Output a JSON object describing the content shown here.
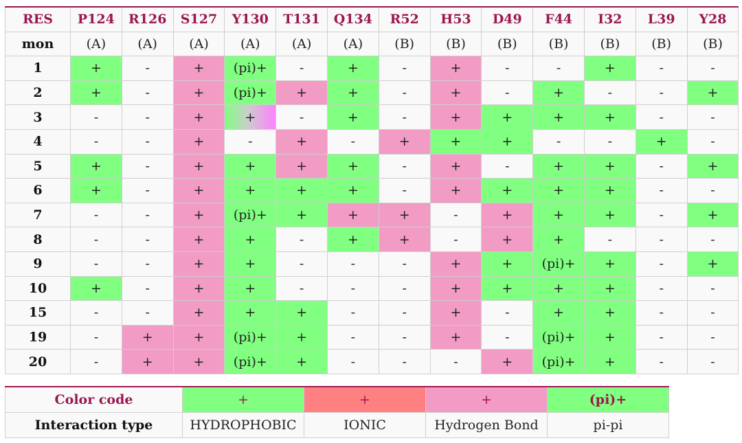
{
  "header": {
    "res_label": "RES",
    "residues": [
      "P124",
      "R126",
      "S127",
      "Y130",
      "T131",
      "Q134",
      "R52",
      "H53",
      "D49",
      "F44",
      "I32",
      "L39",
      "Y28"
    ]
  },
  "mon_row": {
    "label": "mon",
    "values": [
      "(A)",
      "(A)",
      "(A)",
      "(A)",
      "(A)",
      "(A)",
      "(B)",
      "(B)",
      "(B)",
      "(B)",
      "(B)",
      "(B)",
      "(B)"
    ]
  },
  "rows": [
    {
      "label": "1",
      "values": [
        "+",
        "-",
        "+",
        "(pi)+",
        "-",
        "+",
        "-",
        "+",
        "-",
        "-",
        "+",
        "-",
        "-"
      ]
    },
    {
      "label": "2",
      "values": [
        "+",
        "-",
        "+",
        "(pi)+",
        "+",
        "+",
        "-",
        "+",
        "-",
        "+",
        "-",
        "-",
        "+"
      ]
    },
    {
      "label": "3",
      "values": [
        "-",
        "-",
        "+",
        "+",
        "-",
        "+",
        "-",
        "+",
        "+",
        "+",
        "+",
        "-",
        "-"
      ]
    },
    {
      "label": "4",
      "values": [
        "-",
        "-",
        "+",
        "-",
        "+",
        "-",
        "+",
        "+",
        "+",
        "-",
        "-",
        "+",
        "-"
      ]
    },
    {
      "label": "5",
      "values": [
        "+",
        "-",
        "+",
        "+",
        "+",
        "+",
        "-",
        "+",
        "-",
        "+",
        "+",
        "-",
        "+"
      ]
    },
    {
      "label": "6",
      "values": [
        "+",
        "-",
        "+",
        "+",
        "+",
        "+",
        "-",
        "+",
        "+",
        "+",
        "+",
        "-",
        "-"
      ]
    },
    {
      "label": "7",
      "values": [
        "-",
        "-",
        "+",
        "(pi)+",
        "+",
        "+",
        "+",
        "-",
        "+",
        "+",
        "+",
        "-",
        "+"
      ]
    },
    {
      "label": "8",
      "values": [
        "-",
        "-",
        "+",
        "+",
        "-",
        "+",
        "+",
        "-",
        "+",
        "+",
        "-",
        "-",
        "-"
      ]
    },
    {
      "label": "9",
      "values": [
        "-",
        "-",
        "+",
        "+",
        "-",
        "-",
        "-",
        "+",
        "+",
        "(pi)+",
        "+",
        "-",
        "+"
      ]
    },
    {
      "label": "10",
      "values": [
        "+",
        "-",
        "+",
        "+",
        "-",
        "-",
        "-",
        "+",
        "+",
        "+",
        "+",
        "-",
        "-"
      ]
    },
    {
      "label": "15",
      "values": [
        "-",
        "-",
        "+",
        "+",
        "+",
        "-",
        "-",
        "+",
        "-",
        "+",
        "+",
        "-",
        "-"
      ]
    },
    {
      "label": "19",
      "values": [
        "-",
        "+",
        "+",
        "(pi)+",
        "+",
        "-",
        "-",
        "+",
        "-",
        "(pi)+",
        "+",
        "-",
        "-"
      ]
    },
    {
      "label": "20",
      "values": [
        "-",
        "+",
        "+",
        "(pi)+",
        "+",
        "-",
        "-",
        "-",
        "+",
        "(pi)+",
        "+",
        "-",
        "-"
      ]
    }
  ],
  "cell_colors": [
    [
      "g",
      "w",
      "p",
      "g",
      "w",
      "g",
      "w",
      "p",
      "w",
      "w",
      "g",
      "w",
      "w"
    ],
    [
      "g",
      "w",
      "p",
      "g",
      "p",
      "g",
      "w",
      "p",
      "w",
      "g",
      "w",
      "w",
      "g"
    ],
    [
      "w",
      "w",
      "p",
      "grad",
      "w",
      "g",
      "w",
      "p",
      "g",
      "g",
      "g",
      "w",
      "w"
    ],
    [
      "w",
      "w",
      "p",
      "w",
      "p",
      "w",
      "p",
      "g",
      "g",
      "w",
      "w",
      "g",
      "w"
    ],
    [
      "g",
      "w",
      "p",
      "g",
      "p",
      "g",
      "w",
      "p",
      "w",
      "g",
      "g",
      "w",
      "g"
    ],
    [
      "g",
      "w",
      "p",
      "g",
      "g",
      "g",
      "w",
      "p",
      "g",
      "g",
      "g",
      "w",
      "w"
    ],
    [
      "w",
      "w",
      "p",
      "g",
      "g",
      "p",
      "p",
      "w",
      "p",
      "g",
      "g",
      "w",
      "g"
    ],
    [
      "w",
      "w",
      "p",
      "g",
      "w",
      "g",
      "p",
      "w",
      "p",
      "g",
      "w",
      "w",
      "w"
    ],
    [
      "w",
      "w",
      "p",
      "g",
      "w",
      "w",
      "w",
      "p",
      "g",
      "g",
      "g",
      "w",
      "g"
    ],
    [
      "g",
      "w",
      "p",
      "g",
      "w",
      "w",
      "w",
      "p",
      "g",
      "g",
      "g",
      "w",
      "w"
    ],
    [
      "w",
      "w",
      "p",
      "g",
      "g",
      "w",
      "w",
      "p",
      "w",
      "g",
      "g",
      "w",
      "w"
    ],
    [
      "w",
      "p",
      "p",
      "g",
      "g",
      "w",
      "w",
      "p",
      "w",
      "g",
      "g",
      "w",
      "w"
    ],
    [
      "w",
      "p",
      "p",
      "g",
      "g",
      "w",
      "w",
      "w",
      "p",
      "g",
      "g",
      "w",
      "w"
    ]
  ],
  "colors": {
    "hydrophobic": "#80ff80",
    "ionic": "#fe8080",
    "hydrogen_bond": "#f29bc4",
    "neutral": "#f9f9f9",
    "header_text": "#9b1750"
  },
  "legend": {
    "title": "Color code",
    "row_label": "Interaction type",
    "items": [
      {
        "symbol": "+",
        "name": "HYDROPHOBIC",
        "color": "g"
      },
      {
        "symbol": "+",
        "name": "IONIC",
        "color": "i"
      },
      {
        "symbol": "+",
        "name": "Hydrogen Bond",
        "color": "p"
      },
      {
        "symbol": "(pi)+",
        "name": "pi-pi",
        "color": "g"
      }
    ]
  }
}
